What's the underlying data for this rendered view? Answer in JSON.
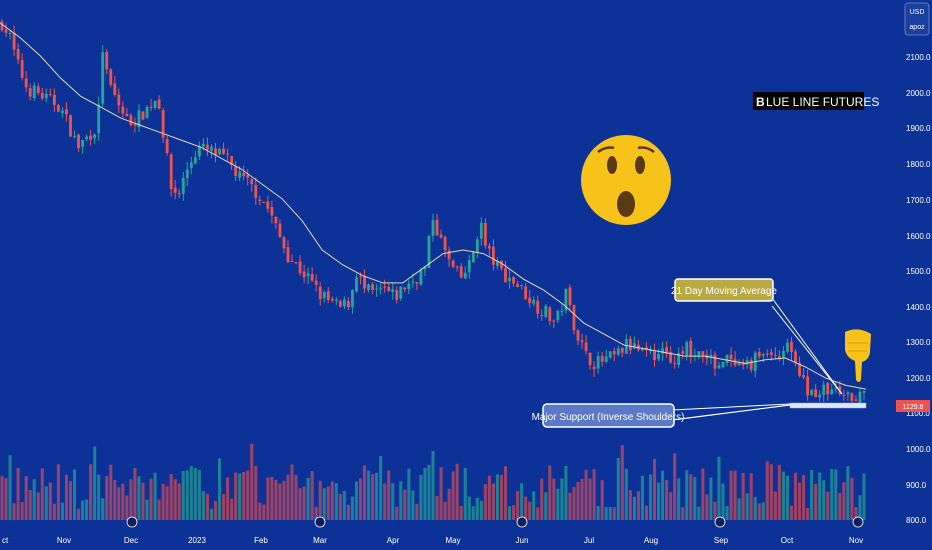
{
  "chart_data": {
    "type": "candlestick",
    "currency": "USD",
    "unit_label": "apoz",
    "x_ticks": [
      "ct",
      "Nov",
      "Dec",
      "2023",
      "Feb",
      "Mar",
      "Apr",
      "May",
      "Jun",
      "Jul",
      "Aug",
      "Sep",
      "Oct",
      "Nov"
    ],
    "y_ticks": [
      "2100.0",
      "2000.0",
      "1900.0",
      "1800.0",
      "1700.0",
      "1600.0",
      "1500.0",
      "1400.0",
      "1300.0",
      "1200.0",
      "1100.0",
      "1000.0",
      "900.0",
      "800.0"
    ],
    "current_price": "1129.8",
    "ylim_price": [
      1082,
      2158
    ],
    "price_series": {
      "name": "Price",
      "close_path": [
        [
          0,
          2150
        ],
        [
          8,
          2110
        ],
        [
          15,
          2040
        ],
        [
          25,
          1970
        ],
        [
          35,
          1960
        ],
        [
          45,
          1940
        ],
        [
          55,
          1930
        ],
        [
          65,
          1880
        ],
        [
          75,
          1810
        ],
        [
          85,
          1840
        ],
        [
          95,
          1870
        ],
        [
          100,
          2080
        ],
        [
          105,
          1990
        ],
        [
          115,
          1930
        ],
        [
          125,
          1880
        ],
        [
          135,
          1890
        ],
        [
          145,
          1920
        ],
        [
          155,
          1950
        ],
        [
          160,
          1850
        ],
        [
          168,
          1700
        ],
        [
          175,
          1680
        ],
        [
          185,
          1760
        ],
        [
          195,
          1810
        ],
        [
          205,
          1800
        ],
        [
          215,
          1790
        ],
        [
          225,
          1770
        ],
        [
          235,
          1730
        ],
        [
          245,
          1710
        ],
        [
          255,
          1680
        ],
        [
          265,
          1640
        ],
        [
          275,
          1570
        ],
        [
          285,
          1510
        ],
        [
          295,
          1480
        ],
        [
          305,
          1450
        ],
        [
          315,
          1410
        ],
        [
          325,
          1390
        ],
        [
          335,
          1370
        ],
        [
          345,
          1390
        ],
        [
          352,
          1470
        ],
        [
          360,
          1420
        ],
        [
          370,
          1410
        ],
        [
          380,
          1420
        ],
        [
          390,
          1400
        ],
        [
          400,
          1430
        ],
        [
          410,
          1450
        ],
        [
          420,
          1480
        ],
        [
          428,
          1620
        ],
        [
          435,
          1560
        ],
        [
          445,
          1490
        ],
        [
          455,
          1450
        ],
        [
          465,
          1490
        ],
        [
          475,
          1610
        ],
        [
          480,
          1540
        ],
        [
          490,
          1490
        ],
        [
          500,
          1460
        ],
        [
          510,
          1440
        ],
        [
          520,
          1410
        ],
        [
          530,
          1380
        ],
        [
          540,
          1360
        ],
        [
          550,
          1330
        ],
        [
          560,
          1410
        ],
        [
          570,
          1310
        ],
        [
          580,
          1240
        ],
        [
          590,
          1220
        ],
        [
          600,
          1230
        ],
        [
          610,
          1240
        ],
        [
          620,
          1270
        ],
        [
          630,
          1260
        ],
        [
          640,
          1240
        ],
        [
          650,
          1250
        ],
        [
          660,
          1240
        ],
        [
          670,
          1230
        ],
        [
          680,
          1260
        ],
        [
          690,
          1240
        ],
        [
          700,
          1230
        ],
        [
          710,
          1220
        ],
        [
          720,
          1230
        ],
        [
          730,
          1200
        ],
        [
          740,
          1210
        ],
        [
          750,
          1240
        ],
        [
          760,
          1250
        ],
        [
          770,
          1240
        ],
        [
          780,
          1280
        ],
        [
          785,
          1250
        ],
        [
          790,
          1190
        ],
        [
          800,
          1150
        ],
        [
          810,
          1140
        ],
        [
          820,
          1150
        ],
        [
          830,
          1140
        ],
        [
          840,
          1125
        ],
        [
          850,
          1140
        ],
        [
          860,
          1135
        ]
      ],
      "ma21": {
        "name": "21 Day Moving Average",
        "path": [
          [
            0,
            2150
          ],
          [
            20,
            2110
          ],
          [
            40,
            2060
          ],
          [
            60,
            2000
          ],
          [
            80,
            1950
          ],
          [
            100,
            1920
          ],
          [
            120,
            1890
          ],
          [
            140,
            1870
          ],
          [
            160,
            1850
          ],
          [
            180,
            1830
          ],
          [
            200,
            1810
          ],
          [
            220,
            1780
          ],
          [
            240,
            1750
          ],
          [
            260,
            1710
          ],
          [
            280,
            1670
          ],
          [
            300,
            1610
          ],
          [
            320,
            1530
          ],
          [
            340,
            1490
          ],
          [
            360,
            1460
          ],
          [
            380,
            1440
          ],
          [
            400,
            1440
          ],
          [
            420,
            1480
          ],
          [
            440,
            1520
          ],
          [
            460,
            1530
          ],
          [
            480,
            1520
          ],
          [
            500,
            1490
          ],
          [
            520,
            1450
          ],
          [
            540,
            1420
          ],
          [
            560,
            1380
          ],
          [
            580,
            1330
          ],
          [
            600,
            1300
          ],
          [
            620,
            1270
          ],
          [
            640,
            1260
          ],
          [
            660,
            1250
          ],
          [
            680,
            1240
          ],
          [
            700,
            1240
          ],
          [
            720,
            1230
          ],
          [
            740,
            1220
          ],
          [
            760,
            1230
          ],
          [
            780,
            1235
          ],
          [
            800,
            1210
          ],
          [
            820,
            1180
          ],
          [
            840,
            1160
          ],
          [
            860,
            1150
          ]
        ]
      }
    },
    "volume_series": {
      "name": "Volume",
      "ylim": [
        800,
        1055
      ]
    },
    "annotations": {
      "moving_average_label": "21 Day Moving Average",
      "support_label": "Major Support (Inverse Shoulders)",
      "support_price": 1120,
      "brand_prefix": "B",
      "brand_rest": "LUE LINE FUTURES",
      "emoji": "surprised-face",
      "pointer": "pointing-down-hand"
    },
    "colors": {
      "background": "#0d3297",
      "up": "#26a69a",
      "down": "#ef5350",
      "moving_average": "#e8d6a8",
      "axis_text": "#ffffff",
      "support_box": "#5b79c8",
      "ma_label_box": "#b9a944",
      "emoji": "#f7c21a"
    },
    "scale_box_currency": "USD",
    "scale_box_unit": "apoz"
  }
}
